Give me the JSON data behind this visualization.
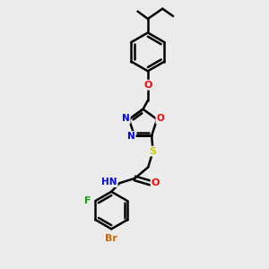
{
  "background_color": "#ebebeb",
  "bond_color": "#000000",
  "atom_colors": {
    "N": "#0000ff",
    "O": "#ff0000",
    "S": "#cccc00",
    "F": "#00aa00",
    "Br": "#cc6600",
    "H": "#555555",
    "C": "#000000"
  },
  "bond_width": 1.8,
  "figsize": [
    3.0,
    3.0
  ],
  "dpi": 100,
  "xlim": [
    0,
    10
  ],
  "ylim": [
    0,
    10
  ]
}
